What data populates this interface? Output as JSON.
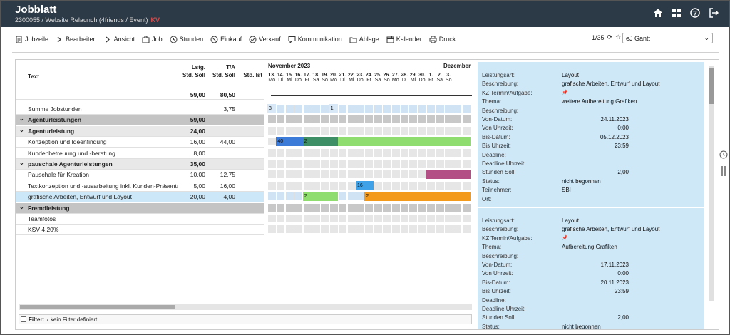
{
  "header": {
    "title": "Jobblatt",
    "subtitle": "2300055 / Website Relaunch (4friends / Event)",
    "kv": "KV"
  },
  "toolbar": {
    "items": [
      {
        "label": "Jobzeile",
        "icon": "document-icon"
      },
      {
        "label": "Bearbeiten",
        "icon": "chevron-right-icon"
      },
      {
        "label": "Ansicht",
        "icon": "chevron-right-icon"
      },
      {
        "label": "Job",
        "icon": "briefcase-icon"
      },
      {
        "label": "Stunden",
        "icon": "clock-icon"
      },
      {
        "label": "Einkauf",
        "icon": "cancel-circle-icon"
      },
      {
        "label": "Verkauf",
        "icon": "check-circle-icon"
      },
      {
        "label": "Kommunikation",
        "icon": "chat-icon"
      },
      {
        "label": "Ablage",
        "icon": "folder-icon"
      },
      {
        "label": "Kalender",
        "icon": "calendar-icon"
      },
      {
        "label": "Druck",
        "icon": "printer-icon"
      }
    ]
  },
  "pager": {
    "text": "1/35"
  },
  "view_select": {
    "value": "eJ Gantt"
  },
  "columns": {
    "text": "Text",
    "lstg1": "Lstg.",
    "lstg2": "Std. Soll",
    "ta1": "T/A",
    "ta2": "Std. Soll",
    "ist": "Std. Ist"
  },
  "totals": {
    "soll": "59,00",
    "ta": "80,50"
  },
  "rows": [
    {
      "text": "Summe Jobstunden",
      "soll": "",
      "ta": "3,75",
      "type": "plain"
    },
    {
      "text": "Agenturleistungen",
      "soll": "59,00",
      "ta": "",
      "type": "group"
    },
    {
      "text": "Agenturleistung",
      "soll": "24,00",
      "ta": "",
      "type": "sub"
    },
    {
      "text": "Konzeption und Ideenfindung",
      "soll": "16,00",
      "ta": "44,00",
      "type": "plain"
    },
    {
      "text": "Kundenbetreuung und -beratung",
      "soll": "8,00",
      "ta": "",
      "type": "plain"
    },
    {
      "text": "pauschale Agenturleistungen",
      "soll": "35,00",
      "ta": "",
      "type": "sub"
    },
    {
      "text": "Pauschale für Kreation",
      "soll": "10,00",
      "ta": "12,75",
      "type": "plain"
    },
    {
      "text": "Textkonzeption und -ausarbeitung inkl. Kunden-Präsenta",
      "soll": "5,00",
      "ta": "16,00",
      "type": "plain"
    },
    {
      "text": "grafische Arbeiten, Entwurf und Layout",
      "soll": "20,00",
      "ta": "4,00",
      "type": "sel"
    },
    {
      "text": "Fremdleistung",
      "soll": "",
      "ta": "",
      "type": "group"
    },
    {
      "text": "Teamfotos",
      "soll": "",
      "ta": "",
      "type": "plain"
    },
    {
      "text": "KSV 4,20%",
      "soll": "",
      "ta": "",
      "type": "plain"
    }
  ],
  "gantt": {
    "month1": "November 2023",
    "month2": "Dezember",
    "days": [
      "13.",
      "14.",
      "15.",
      "16.",
      "17.",
      "18.",
      "19.",
      "20.",
      "21.",
      "22.",
      "23.",
      "24.",
      "25.",
      "26.",
      "27.",
      "28.",
      "29.",
      "30.",
      "1.",
      "2.",
      "3."
    ],
    "weekdays": [
      "Mo",
      "Di",
      "Mi",
      "Do",
      "Fr",
      "Sa",
      "So",
      "Mo",
      "Di",
      "Mi",
      "Do",
      "Fr",
      "Sa",
      "So",
      "Mo",
      "Di",
      "Mi",
      "Do",
      "Fr",
      "Sa",
      "So"
    ],
    "labels": {
      "a": "3",
      "b": "1",
      "c": "40",
      "d": "2",
      "e": "16",
      "f": "2",
      "g": "2"
    }
  },
  "details": [
    {
      "Leistungsart": "Layout",
      "Beschreibung": "grafische Arbeiten, Entwurf und Layout",
      "Thema": "weitere Aufbereitung Grafiken",
      "Von-Datum": "24.11.2023",
      "Von Uhrzeit": "0:00",
      "Bis-Datum": "05.12.2023",
      "Bis Uhrzeit": "23:59",
      "Stunden Soll": "2,00",
      "Status": "nicht begonnen",
      "Teilnehmer": "SBI"
    },
    {
      "Leistungsart": "Layout",
      "Beschreibung": "grafische Arbeiten, Entwurf und Layout",
      "Thema": "Aufbereitung Grafiken",
      "Von-Datum": "17.11.2023",
      "Von Uhrzeit": "0:00",
      "Bis-Datum": "20.11.2023",
      "Bis Uhrzeit": "23:59",
      "Stunden Soll": "2,00",
      "Status": "nicht begonnen"
    }
  ],
  "detail_labels": [
    "Leistungsart:",
    "Beschreibung:",
    "KZ Termin/Aufgabe:",
    "Thema:",
    "Beschreibung:",
    "Von-Datum:",
    "Von Uhrzeit:",
    "Bis-Datum:",
    "Bis Uhrzeit:",
    "Deadline:",
    "Deadline Uhrzeit:",
    "Stunden Soll:",
    "Status:",
    "Teilnehmer:",
    "Ort:"
  ],
  "filter": {
    "label": "Filter:",
    "text": "kein Filter definiert"
  },
  "colors": {
    "header": "#2c3946",
    "blue": "#3d7bd9",
    "green_dark": "#3f8f66",
    "green": "#8fdc6f",
    "orange": "#f39a1c",
    "purple": "#b34f85",
    "lightblue": "#cfe8f8"
  }
}
